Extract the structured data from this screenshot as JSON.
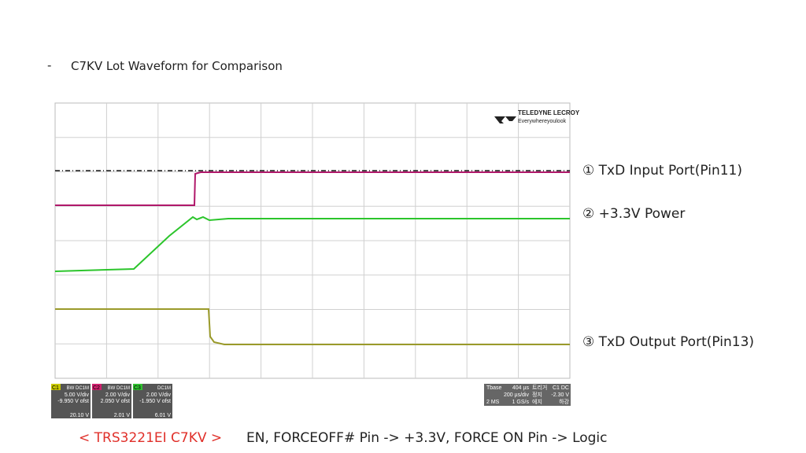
{
  "header": {
    "bullet": "-",
    "title": "C7KV Lot Waveform for Comparison"
  },
  "scope": {
    "logo": {
      "brand": "TELEDYNE LECROY",
      "tagline": "Everywhereyoulook"
    },
    "channels": [
      {
        "id": "C1",
        "tags": "BW DC1M",
        "scale": "5.00 V/div",
        "offset": "-9.950 V ofst",
        "level": "20.10 V"
      },
      {
        "id": "C2",
        "tags": "BW DC1M",
        "scale": "2.00 V/div",
        "offset": "2.050 V ofst",
        "level": "2.01 V"
      },
      {
        "id": "C3",
        "tags": "DC1M",
        "scale": "2.00 V/div",
        "offset": "-1.950 V ofst",
        "level": "6.01 V"
      }
    ],
    "timebase": {
      "name": "Tbase",
      "delay": "404 µs",
      "scale": "200 µs/div",
      "samples": "2 MS",
      "rate": "1 GS/s"
    },
    "trigger": {
      "name": "트리거",
      "source": "C1 DC",
      "mode": "정지",
      "level": "-2.30 V",
      "type": "에지",
      "slope": "하강"
    }
  },
  "labels": [
    "① TxD Input Port(Pin11)",
    "② +3.3V Power",
    "③ TxD Output Port(Pin13)"
  ],
  "footer": {
    "model": "< TRS3221EI C7KV  >",
    "note": "EN, FORCEOFF# Pin -> +3.3V, FORCE ON Pin -> Logic"
  }
}
